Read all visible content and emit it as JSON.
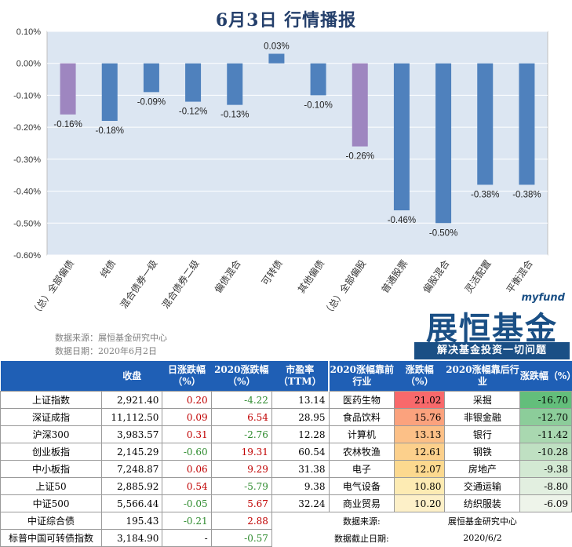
{
  "title": "6月3日  行情播报",
  "chart_data": {
    "type": "bar",
    "categories": [
      "（总）全部偏债",
      "纯债",
      "混合债券一级",
      "混合债券二级",
      "偏债混合",
      "可转债",
      "其他偏债",
      "（总）全部偏股",
      "普通股票",
      "偏股混合",
      "灵活配置",
      "平衡混合"
    ],
    "values": [
      -0.16,
      -0.18,
      -0.09,
      -0.12,
      -0.13,
      0.03,
      -0.1,
      -0.26,
      -0.46,
      -0.5,
      -0.38,
      -0.38
    ],
    "data_labels": [
      "-0.16%",
      "-0.18%",
      "-0.09%",
      "-0.12%",
      "-0.13%",
      "0.03%",
      "-0.10%",
      "-0.26%",
      "-0.46%",
      "-0.50%",
      "-0.38%",
      "-0.38%"
    ],
    "highlight": [
      true,
      false,
      false,
      false,
      false,
      false,
      false,
      true,
      false,
      false,
      false,
      false
    ],
    "ylim": [
      -0.6,
      0.1
    ],
    "yticks": [
      0.1,
      0.0,
      -0.1,
      -0.2,
      -0.3,
      -0.4,
      -0.5,
      -0.6
    ],
    "ytick_labels": [
      "0.10%",
      "0.00%",
      "-0.10%",
      "-0.20%",
      "-0.30%",
      "-0.40%",
      "-0.50%",
      "-0.60%"
    ],
    "colors": {
      "bar": "#4f81bd",
      "highlight": "#9e86c0",
      "plot_bg": "#dce6f2"
    }
  },
  "source": {
    "line1": "数据来源：展恒基金研究中心",
    "line2": "数据日期：2020年6月2日"
  },
  "logo": {
    "brand": "myfund",
    "name": "展恒基金",
    "slogan": "解决基金投资一切问题"
  },
  "table": {
    "headers": [
      "",
      "收盘",
      "日涨跌幅（%）",
      "2020涨跌幅（%）",
      "市盈率（TTM）",
      "2020涨幅靠前行业",
      "涨跌幅（%）",
      "2020涨幅靠后行业",
      "涨跌幅（%）"
    ],
    "rows": [
      [
        "上证指数",
        "2,921.40",
        "0.20",
        "-4.22",
        "13.14",
        "医药生物",
        "21.02",
        "采掘",
        "-16.70"
      ],
      [
        "深证成指",
        "11,112.50",
        "0.09",
        "6.54",
        "28.95",
        "食品饮料",
        "15.76",
        "非银金融",
        "-12.70"
      ],
      [
        "沪深300",
        "3,983.57",
        "0.31",
        "-2.76",
        "12.28",
        "计算机",
        "13.13",
        "银行",
        "-11.42"
      ],
      [
        "创业板指",
        "2,145.29",
        "-0.60",
        "19.31",
        "60.54",
        "农林牧渔",
        "12.61",
        "钢铁",
        "-10.28"
      ],
      [
        "中小板指",
        "7,248.87",
        "0.06",
        "9.29",
        "31.38",
        "电子",
        "12.07",
        "房地产",
        "-9.38"
      ],
      [
        "上证50",
        "2,885.92",
        "0.54",
        "-5.79",
        "9.38",
        "电气设备",
        "10.80",
        "交通运输",
        "-8.80"
      ],
      [
        "中证500",
        "5,566.44",
        "-0.05",
        "5.67",
        "32.24",
        "商业贸易",
        "10.20",
        "纺织服装",
        "-6.09"
      ],
      [
        "中证综合债",
        "195.43",
        "-0.21",
        "2.88",
        "",
        "",
        "",
        "",
        ""
      ],
      [
        "标普中国可转债指数",
        "3,184.90",
        "-",
        "-0.57",
        "",
        "",
        "",
        "",
        ""
      ]
    ],
    "foot_source_label": "数据来源:",
    "foot_source_value": "展恒基金研究中心",
    "foot_date_label": "数据截止日期:",
    "foot_date_value": "2020/6/2",
    "colors": {
      "header": "#1f5fb5",
      "top_heat": [
        "#f8696b",
        "#fba27d",
        "#fcc087",
        "#fcd08c",
        "#fcd98f",
        "#fdebb3",
        "#fdf0c8"
      ],
      "bottom_heat": [
        "#63be7b",
        "#8ccd9a",
        "#a9d8b0",
        "#bfe0c2",
        "#d3e9d3",
        "#e2efe0",
        "#eef4ea"
      ]
    }
  }
}
